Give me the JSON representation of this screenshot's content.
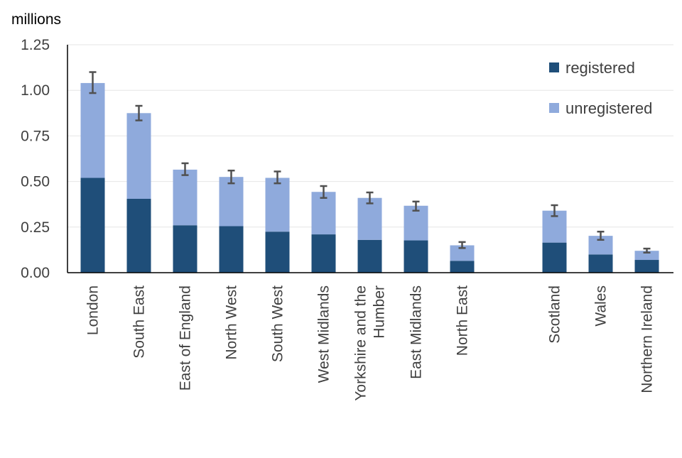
{
  "chart_data": {
    "type": "bar",
    "stacked": true,
    "unit_label": "millions",
    "ylim": [
      0,
      1.25
    ],
    "yticks": [
      "0.00",
      "0.25",
      "0.50",
      "0.75",
      "1.00",
      "1.25"
    ],
    "ytick_values": [
      0,
      0.25,
      0.5,
      0.75,
      1.0,
      1.25
    ],
    "grid": "horizontal",
    "legend_position": "top-right",
    "categories": [
      "London",
      "South East",
      "East of England",
      "North West",
      "South West",
      "West Midlands",
      "Yorkshire and the Humber",
      "East Midlands",
      "North East",
      "",
      "Scotland",
      "Wales",
      "Northern Ireland"
    ],
    "category_lines": [
      [
        "London"
      ],
      [
        "South East"
      ],
      [
        "East of England"
      ],
      [
        "North West"
      ],
      [
        "South West"
      ],
      [
        "West Midlands"
      ],
      [
        "Yorkshire and the",
        "Humber"
      ],
      [
        "East Midlands"
      ],
      [
        "North East"
      ],
      [],
      [
        "Scotland"
      ],
      [
        "Wales"
      ],
      [
        "Northern Ireland"
      ]
    ],
    "series": [
      {
        "name": "registered",
        "color": "#1f4e79",
        "values": [
          0.52,
          0.405,
          0.26,
          0.255,
          0.225,
          0.21,
          0.18,
          0.177,
          0.065,
          null,
          0.165,
          0.1,
          0.07
        ]
      },
      {
        "name": "unregistered",
        "color": "#8faadc",
        "values": [
          0.52,
          0.47,
          0.305,
          0.27,
          0.295,
          0.233,
          0.23,
          0.19,
          0.085,
          null,
          0.175,
          0.102,
          0.05
        ]
      }
    ],
    "totals": [
      1.04,
      0.875,
      0.565,
      0.525,
      0.52,
      0.443,
      0.41,
      0.367,
      0.15,
      null,
      0.34,
      0.202,
      0.12
    ],
    "error_bars": [
      [
        0.985,
        1.1
      ],
      [
        0.835,
        0.915
      ],
      [
        0.535,
        0.6
      ],
      [
        0.49,
        0.56
      ],
      [
        0.49,
        0.555
      ],
      [
        0.41,
        0.475
      ],
      [
        0.38,
        0.44
      ],
      [
        0.34,
        0.39
      ],
      [
        0.135,
        0.168
      ],
      null,
      [
        0.31,
        0.37
      ],
      [
        0.18,
        0.225
      ],
      [
        0.11,
        0.132
      ]
    ],
    "error_bar_color": "#505050"
  }
}
